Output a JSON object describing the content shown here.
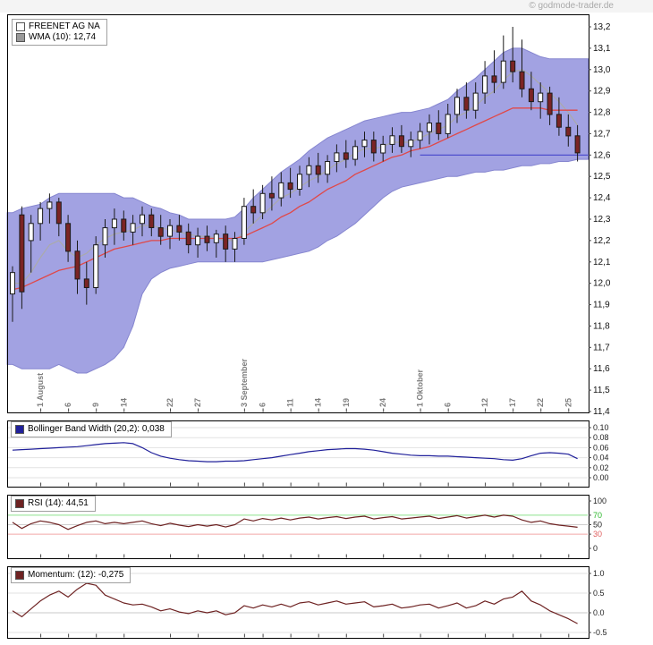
{
  "watermark": "© godmode-trader.de",
  "colors": {
    "band": "#a2a2e2",
    "band_edge": "#8585cf",
    "candle_up": "#ffffff",
    "candle_down": "#7b2424",
    "sma_line": "#e04848",
    "wma_line": "#aaaaaa",
    "wma_swatch": "#999999",
    "last_price_line": "#4646cc",
    "bbw_line": "#20209a",
    "rsi_line": "#6e2222",
    "momentum_line": "#6e2222",
    "rsi_upper_level": "#8ee28e",
    "rsi_lower_level": "#f2a6a6",
    "rsi_upper_label": "#2db82d",
    "rsi_lower_label": "#e06060"
  },
  "chart_data": [
    {
      "type": "candlestick",
      "title": "FREENET AG NA",
      "legend": [
        "FREENET AG NA",
        "WMA (10): 12,74"
      ],
      "y_axis": {
        "ylim": [
          11.4,
          13.2
        ],
        "ticks": [
          {
            "v": 13.2,
            "label": "13,2"
          },
          {
            "v": 13.1,
            "label": "13,1"
          },
          {
            "v": 13.0,
            "label": "13,0"
          },
          {
            "v": 12.9,
            "label": "12,9"
          },
          {
            "v": 12.8,
            "label": "12,8"
          },
          {
            "v": 12.7,
            "label": "12,7"
          },
          {
            "v": 12.6,
            "label": "12,6"
          },
          {
            "v": 12.5,
            "label": "12,5"
          },
          {
            "v": 12.4,
            "label": "12,4"
          },
          {
            "v": 12.3,
            "label": "12,3"
          },
          {
            "v": 12.2,
            "label": "12,2"
          },
          {
            "v": 12.1,
            "label": "12,1"
          },
          {
            "v": 12.0,
            "label": "12,0"
          },
          {
            "v": 11.9,
            "label": "11,9"
          },
          {
            "v": 11.8,
            "label": "11,8"
          },
          {
            "v": 11.7,
            "label": "11,7"
          },
          {
            "v": 11.6,
            "label": "11,6"
          },
          {
            "v": 11.5,
            "label": "11,5"
          },
          {
            "v": 11.4,
            "label": "11,4"
          }
        ]
      },
      "x_ticks": [
        {
          "i": 3,
          "label": "1 August"
        },
        {
          "i": 6,
          "label": "6"
        },
        {
          "i": 9,
          "label": "9"
        },
        {
          "i": 12,
          "label": "14"
        },
        {
          "i": 17,
          "label": "22"
        },
        {
          "i": 20,
          "label": "27"
        },
        {
          "i": 25,
          "label": "3 September"
        },
        {
          "i": 27,
          "label": "6"
        },
        {
          "i": 30,
          "label": "11"
        },
        {
          "i": 33,
          "label": "14"
        },
        {
          "i": 36,
          "label": "19"
        },
        {
          "i": 40,
          "label": "24"
        },
        {
          "i": 44,
          "label": "1 Oktober"
        },
        {
          "i": 47,
          "label": "6"
        },
        {
          "i": 51,
          "label": "12"
        },
        {
          "i": 54,
          "label": "17"
        },
        {
          "i": 57,
          "label": "22"
        },
        {
          "i": 60,
          "label": "25"
        }
      ],
      "candles": [
        [
          11.95,
          12.08,
          11.82,
          12.05
        ],
        [
          12.32,
          12.36,
          11.88,
          11.96
        ],
        [
          12.2,
          12.32,
          12.05,
          12.28
        ],
        [
          12.28,
          12.38,
          12.2,
          12.35
        ],
        [
          12.35,
          12.42,
          12.28,
          12.38
        ],
        [
          12.38,
          12.4,
          12.22,
          12.28
        ],
        [
          12.28,
          12.32,
          12.1,
          12.15
        ],
        [
          12.15,
          12.2,
          11.95,
          12.02
        ],
        [
          12.02,
          12.1,
          11.9,
          11.98
        ],
        [
          11.98,
          12.22,
          11.95,
          12.18
        ],
        [
          12.18,
          12.3,
          12.12,
          12.26
        ],
        [
          12.26,
          12.35,
          12.18,
          12.3
        ],
        [
          12.3,
          12.34,
          12.2,
          12.24
        ],
        [
          12.24,
          12.32,
          12.18,
          12.28
        ],
        [
          12.28,
          12.36,
          12.22,
          12.32
        ],
        [
          12.32,
          12.35,
          12.22,
          12.26
        ],
        [
          12.26,
          12.32,
          12.18,
          12.22
        ],
        [
          12.22,
          12.3,
          12.16,
          12.27
        ],
        [
          12.27,
          12.32,
          12.2,
          12.24
        ],
        [
          12.24,
          12.28,
          12.14,
          12.18
        ],
        [
          12.18,
          12.26,
          12.12,
          12.22
        ],
        [
          12.22,
          12.27,
          12.15,
          12.19
        ],
        [
          12.19,
          12.25,
          12.12,
          12.23
        ],
        [
          12.23,
          12.27,
          12.1,
          12.16
        ],
        [
          12.16,
          12.24,
          12.1,
          12.21
        ],
        [
          12.21,
          12.4,
          12.18,
          12.36
        ],
        [
          12.36,
          12.44,
          12.28,
          12.33
        ],
        [
          12.33,
          12.46,
          12.3,
          12.42
        ],
        [
          12.42,
          12.5,
          12.34,
          12.4
        ],
        [
          12.4,
          12.52,
          12.36,
          12.47
        ],
        [
          12.47,
          12.54,
          12.4,
          12.44
        ],
        [
          12.44,
          12.55,
          12.41,
          12.51
        ],
        [
          12.51,
          12.59,
          12.45,
          12.55
        ],
        [
          12.55,
          12.61,
          12.47,
          12.51
        ],
        [
          12.51,
          12.6,
          12.47,
          12.57
        ],
        [
          12.57,
          12.65,
          12.52,
          12.61
        ],
        [
          12.61,
          12.67,
          12.54,
          12.58
        ],
        [
          12.58,
          12.67,
          12.55,
          12.64
        ],
        [
          12.64,
          12.71,
          12.59,
          12.67
        ],
        [
          12.67,
          12.71,
          12.57,
          12.61
        ],
        [
          12.61,
          12.69,
          12.57,
          12.65
        ],
        [
          12.65,
          12.73,
          12.61,
          12.69
        ],
        [
          12.69,
          12.74,
          12.61,
          12.64
        ],
        [
          12.64,
          12.71,
          12.59,
          12.67
        ],
        [
          12.67,
          12.75,
          12.63,
          12.71
        ],
        [
          12.71,
          12.79,
          12.65,
          12.75
        ],
        [
          12.75,
          12.81,
          12.67,
          12.7
        ],
        [
          12.7,
          12.84,
          12.68,
          12.79
        ],
        [
          12.79,
          12.91,
          12.75,
          12.87
        ],
        [
          12.87,
          12.94,
          12.77,
          12.81
        ],
        [
          12.81,
          12.94,
          12.77,
          12.89
        ],
        [
          12.89,
          13.04,
          12.84,
          12.97
        ],
        [
          12.97,
          13.09,
          12.89,
          12.94
        ],
        [
          12.94,
          13.16,
          12.91,
          13.04
        ],
        [
          13.04,
          13.2,
          12.94,
          12.99
        ],
        [
          12.99,
          13.14,
          12.87,
          12.91
        ],
        [
          12.91,
          12.99,
          12.81,
          12.85
        ],
        [
          12.85,
          12.94,
          12.77,
          12.89
        ],
        [
          12.89,
          12.92,
          12.74,
          12.79
        ],
        [
          12.79,
          12.87,
          12.69,
          12.73
        ],
        [
          12.73,
          12.79,
          12.64,
          12.69
        ],
        [
          12.69,
          12.74,
          12.57,
          12.61
        ]
      ],
      "bb_upper": [
        12.33,
        12.35,
        12.36,
        12.37,
        12.4,
        12.42,
        12.42,
        12.42,
        12.42,
        12.42,
        12.42,
        12.42,
        12.4,
        12.4,
        12.38,
        12.36,
        12.35,
        12.33,
        12.32,
        12.3,
        12.3,
        12.3,
        12.3,
        12.3,
        12.31,
        12.35,
        12.4,
        12.44,
        12.48,
        12.52,
        12.55,
        12.58,
        12.62,
        12.65,
        12.68,
        12.7,
        12.72,
        12.74,
        12.76,
        12.77,
        12.78,
        12.79,
        12.8,
        12.8,
        12.81,
        12.82,
        12.84,
        12.86,
        12.9,
        12.93,
        12.96,
        13.0,
        13.04,
        13.08,
        13.1,
        13.1,
        13.08,
        13.06,
        13.05,
        13.05,
        13.05,
        13.05
      ],
      "bb_lower": [
        11.62,
        11.6,
        11.6,
        11.6,
        11.6,
        11.62,
        11.6,
        11.58,
        11.58,
        11.6,
        11.62,
        11.65,
        11.7,
        11.8,
        11.95,
        12.02,
        12.05,
        12.07,
        12.08,
        12.09,
        12.1,
        12.1,
        12.1,
        12.1,
        12.1,
        12.1,
        12.1,
        12.1,
        12.11,
        12.12,
        12.13,
        12.14,
        12.15,
        12.17,
        12.2,
        12.22,
        12.25,
        12.28,
        12.32,
        12.36,
        12.4,
        12.43,
        12.45,
        12.46,
        12.47,
        12.48,
        12.49,
        12.5,
        12.5,
        12.51,
        12.52,
        12.52,
        12.53,
        12.53,
        12.54,
        12.55,
        12.55,
        12.56,
        12.56,
        12.57,
        12.57,
        12.58
      ],
      "sma": [
        11.97,
        11.98,
        12.0,
        12.02,
        12.04,
        12.06,
        12.07,
        12.08,
        12.1,
        12.12,
        12.14,
        12.16,
        12.17,
        12.18,
        12.19,
        12.2,
        12.2,
        12.21,
        12.21,
        12.21,
        12.21,
        12.21,
        12.21,
        12.21,
        12.21,
        12.22,
        12.24,
        12.26,
        12.28,
        12.31,
        12.33,
        12.36,
        12.38,
        12.41,
        12.44,
        12.46,
        12.48,
        12.51,
        12.53,
        12.55,
        12.57,
        12.59,
        12.6,
        12.62,
        12.63,
        12.64,
        12.66,
        12.68,
        12.7,
        12.72,
        12.74,
        12.76,
        12.78,
        12.8,
        12.82,
        12.82,
        12.82,
        12.82,
        12.81,
        12.81,
        12.81,
        12.81
      ],
      "wma": [
        12.0,
        12.0,
        12.05,
        12.12,
        12.18,
        12.2,
        12.15,
        12.12,
        12.14,
        12.18,
        12.21,
        12.23,
        12.24,
        12.25,
        12.27,
        12.27,
        12.26,
        12.25,
        12.24,
        12.23,
        12.22,
        12.22,
        12.21,
        12.2,
        12.2,
        12.24,
        12.28,
        12.32,
        12.36,
        12.4,
        12.42,
        12.45,
        12.48,
        12.5,
        12.53,
        12.56,
        12.58,
        12.61,
        12.63,
        12.63,
        12.64,
        12.66,
        12.66,
        12.66,
        12.68,
        12.7,
        12.72,
        12.74,
        12.78,
        12.8,
        12.83,
        12.87,
        12.9,
        12.95,
        12.99,
        13.0,
        12.97,
        12.93,
        12.89,
        12.85,
        12.8,
        12.74
      ],
      "wma_current": "12,74",
      "last_price": {
        "value": 12.6,
        "from_index": 44
      }
    },
    {
      "type": "line",
      "name": "Bollinger Band Width (20,2)",
      "legend": "Bollinger Band Width (20,2): 0,038",
      "current": 0.038,
      "ylim": [
        0,
        0.1
      ],
      "y_ticks": [
        {
          "v": 0.1,
          "label": "0.10"
        },
        {
          "v": 0.08,
          "label": "0.08"
        },
        {
          "v": 0.06,
          "label": "0.06"
        },
        {
          "v": 0.04,
          "label": "0.04"
        },
        {
          "v": 0.02,
          "label": "0.02"
        },
        {
          "v": 0.0,
          "label": "0.00"
        }
      ],
      "values": [
        0.055,
        0.056,
        0.057,
        0.058,
        0.059,
        0.06,
        0.061,
        0.062,
        0.064,
        0.066,
        0.068,
        0.069,
        0.07,
        0.068,
        0.06,
        0.05,
        0.043,
        0.039,
        0.036,
        0.034,
        0.033,
        0.032,
        0.032,
        0.033,
        0.033,
        0.034,
        0.036,
        0.038,
        0.04,
        0.043,
        0.046,
        0.049,
        0.052,
        0.054,
        0.056,
        0.057,
        0.058,
        0.058,
        0.057,
        0.055,
        0.052,
        0.049,
        0.047,
        0.045,
        0.044,
        0.044,
        0.043,
        0.043,
        0.042,
        0.041,
        0.04,
        0.039,
        0.038,
        0.036,
        0.035,
        0.038,
        0.044,
        0.049,
        0.05,
        0.049,
        0.047,
        0.038
      ]
    },
    {
      "type": "line",
      "name": "RSI (14)",
      "legend": "RSI (14): 44,51",
      "current": 44.51,
      "ylim": [
        0,
        100
      ],
      "levels": {
        "upper": 70,
        "lower": 30
      },
      "y_ticks": [
        {
          "v": 100,
          "label": "100"
        },
        {
          "v": 70,
          "label": "70",
          "color": "#2db82d"
        },
        {
          "v": 50,
          "label": "50"
        },
        {
          "v": 30,
          "label": "30",
          "color": "#e06060"
        },
        {
          "v": 0,
          "label": "0"
        }
      ],
      "values": [
        55,
        42,
        52,
        58,
        55,
        50,
        40,
        48,
        55,
        58,
        52,
        55,
        52,
        55,
        58,
        52,
        48,
        53,
        49,
        46,
        50,
        47,
        50,
        45,
        50,
        62,
        58,
        63,
        60,
        64,
        60,
        64,
        66,
        62,
        65,
        67,
        63,
        66,
        68,
        62,
        65,
        67,
        62,
        64,
        66,
        68,
        63,
        66,
        69,
        64,
        67,
        70,
        66,
        70,
        68,
        60,
        55,
        58,
        52,
        49,
        47,
        44.51
      ]
    },
    {
      "type": "line",
      "name": "Momentum (12)",
      "legend": "Momentum: (12): -0,275",
      "current": -0.275,
      "ylim": [
        -0.5,
        1.0
      ],
      "y_ticks": [
        {
          "v": 1.0,
          "label": "1.0"
        },
        {
          "v": 0.5,
          "label": "0.5"
        },
        {
          "v": 0.0,
          "label": "0.0"
        },
        {
          "v": -0.5,
          "label": "-0.5"
        }
      ],
      "values": [
        0.05,
        -0.1,
        0.1,
        0.3,
        0.45,
        0.55,
        0.4,
        0.6,
        0.75,
        0.7,
        0.45,
        0.35,
        0.25,
        0.2,
        0.22,
        0.15,
        0.05,
        0.1,
        0.02,
        -0.02,
        0.05,
        0.0,
        0.05,
        -0.05,
        0.0,
        0.18,
        0.12,
        0.2,
        0.15,
        0.22,
        0.15,
        0.25,
        0.28,
        0.2,
        0.25,
        0.3,
        0.22,
        0.25,
        0.28,
        0.15,
        0.18,
        0.22,
        0.12,
        0.15,
        0.2,
        0.22,
        0.12,
        0.18,
        0.25,
        0.12,
        0.18,
        0.3,
        0.22,
        0.35,
        0.4,
        0.55,
        0.3,
        0.2,
        0.05,
        -0.05,
        -0.15,
        -0.275
      ]
    }
  ]
}
